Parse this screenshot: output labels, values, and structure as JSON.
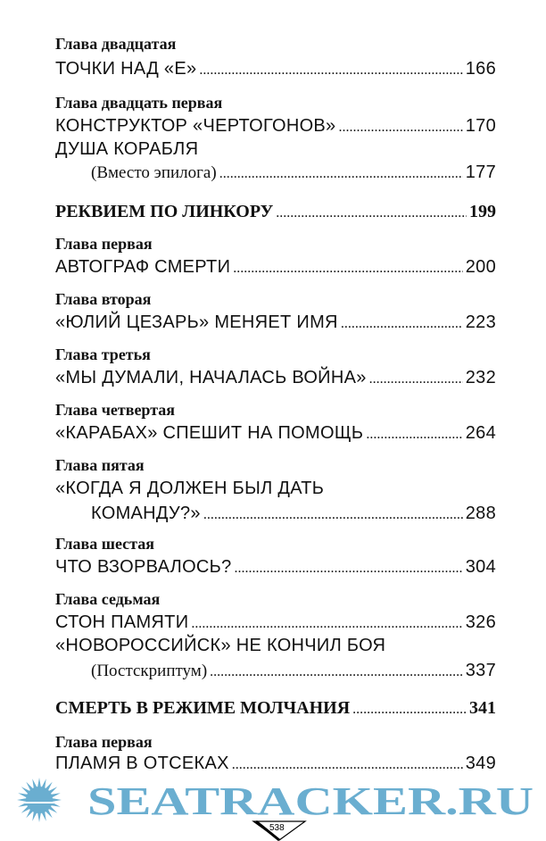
{
  "lines": [
    {
      "kind": "chapter",
      "text": "Глава двадцатая"
    },
    {
      "kind": "entry",
      "text": "ТОЧКИ НАД «Е»",
      "page": "166"
    },
    {
      "kind": "chapter",
      "text": "Глава двадцать первая"
    },
    {
      "kind": "entry",
      "text": "КОНСТРУКТОР «ЧЕРТОГОНОВ»",
      "page": "170"
    },
    {
      "kind": "entry",
      "text": "ДУША КОРАБЛЯ"
    },
    {
      "kind": "sub",
      "text": "(Вместо эпилога)",
      "page": "177"
    },
    {
      "kind": "part",
      "text": "РЕКВИЕМ ПО ЛИНКОРУ",
      "page": "199"
    },
    {
      "kind": "chapter",
      "text": "Глава первая"
    },
    {
      "kind": "entry",
      "text": "АВТОГРАФ СМЕРТИ",
      "page": "200"
    },
    {
      "kind": "chapter",
      "text": "Глава вторая"
    },
    {
      "kind": "entry",
      "text": "«ЮЛИЙ ЦЕЗАРЬ» МЕНЯЕТ ИМЯ",
      "page": "223"
    },
    {
      "kind": "chapter",
      "text": "Глава третья"
    },
    {
      "kind": "entry",
      "text": "«МЫ ДУМАЛИ, НАЧАЛАСЬ ВОЙНА»",
      "page": "232"
    },
    {
      "kind": "chapter",
      "text": "Глава четвертая"
    },
    {
      "kind": "entry",
      "text": "«КАРАБАХ» СПЕШИТ НА ПОМОЩЬ",
      "page": "264"
    },
    {
      "kind": "chapter",
      "text": "Глава пятая"
    },
    {
      "kind": "entry",
      "text": "«КОГДА Я ДОЛЖЕН БЫЛ ДАТЬ"
    },
    {
      "kind": "entry-indent",
      "text": "КОМАНДУ?»",
      "page": "288"
    },
    {
      "kind": "chapter",
      "text": "Глава шестая"
    },
    {
      "kind": "entry",
      "text": "ЧТО ВЗОРВАЛОСЬ?",
      "page": "304"
    },
    {
      "kind": "chapter",
      "text": "Глава седьмая"
    },
    {
      "kind": "entry",
      "text": "СТОН ПАМЯТИ",
      "page": "326"
    },
    {
      "kind": "entry",
      "text": "«НОВОРОССИЙСК» НЕ КОНЧИЛ БОЯ"
    },
    {
      "kind": "sub",
      "text": "(Постскриптум)",
      "page": "337"
    },
    {
      "kind": "part",
      "text": "СМЕРТЬ В РЕЖИМЕ МОЛЧАНИЯ",
      "page": "341"
    },
    {
      "kind": "chapter",
      "text": "Глава первая"
    },
    {
      "kind": "entry",
      "text": "ПЛАМЯ В ОТСЕКАХ",
      "page": "349"
    }
  ],
  "watermark": {
    "text": "SEATRACKER.RU",
    "color": "#6aaed0"
  },
  "page_number": "538"
}
